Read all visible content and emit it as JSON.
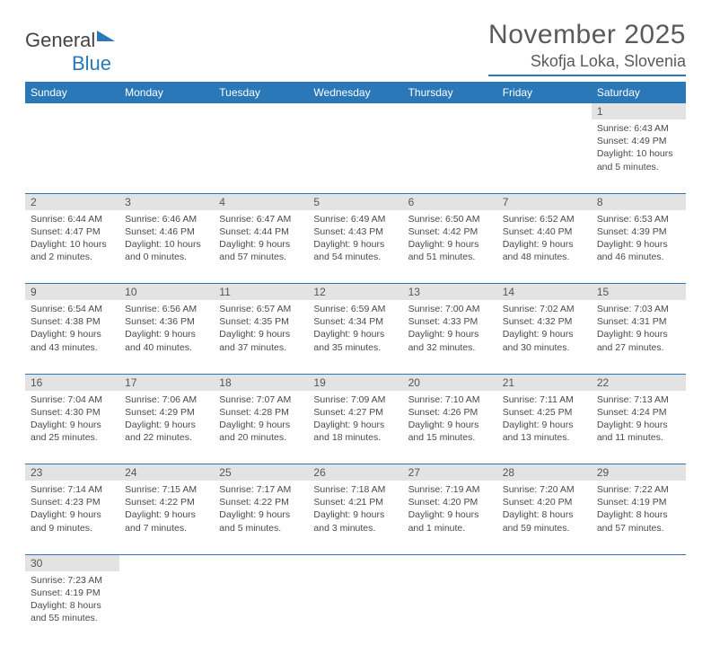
{
  "logo": {
    "text_gray": "General",
    "text_blue": "Blue"
  },
  "title": "November 2025",
  "location": "Skofja Loka, Slovenia",
  "colors": {
    "header_bg": "#2a78b8",
    "header_fg": "#ffffff",
    "daynum_bg": "#e3e3e3",
    "text": "#4a4a4a",
    "row_divider": "#2a78b8"
  },
  "day_headers": [
    "Sunday",
    "Monday",
    "Tuesday",
    "Wednesday",
    "Thursday",
    "Friday",
    "Saturday"
  ],
  "weeks": [
    [
      null,
      null,
      null,
      null,
      null,
      null,
      {
        "n": "1",
        "sr": "6:43 AM",
        "ss": "4:49 PM",
        "dl": "10 hours and 5 minutes."
      }
    ],
    [
      {
        "n": "2",
        "sr": "6:44 AM",
        "ss": "4:47 PM",
        "dl": "10 hours and 2 minutes."
      },
      {
        "n": "3",
        "sr": "6:46 AM",
        "ss": "4:46 PM",
        "dl": "10 hours and 0 minutes."
      },
      {
        "n": "4",
        "sr": "6:47 AM",
        "ss": "4:44 PM",
        "dl": "9 hours and 57 minutes."
      },
      {
        "n": "5",
        "sr": "6:49 AM",
        "ss": "4:43 PM",
        "dl": "9 hours and 54 minutes."
      },
      {
        "n": "6",
        "sr": "6:50 AM",
        "ss": "4:42 PM",
        "dl": "9 hours and 51 minutes."
      },
      {
        "n": "7",
        "sr": "6:52 AM",
        "ss": "4:40 PM",
        "dl": "9 hours and 48 minutes."
      },
      {
        "n": "8",
        "sr": "6:53 AM",
        "ss": "4:39 PM",
        "dl": "9 hours and 46 minutes."
      }
    ],
    [
      {
        "n": "9",
        "sr": "6:54 AM",
        "ss": "4:38 PM",
        "dl": "9 hours and 43 minutes."
      },
      {
        "n": "10",
        "sr": "6:56 AM",
        "ss": "4:36 PM",
        "dl": "9 hours and 40 minutes."
      },
      {
        "n": "11",
        "sr": "6:57 AM",
        "ss": "4:35 PM",
        "dl": "9 hours and 37 minutes."
      },
      {
        "n": "12",
        "sr": "6:59 AM",
        "ss": "4:34 PM",
        "dl": "9 hours and 35 minutes."
      },
      {
        "n": "13",
        "sr": "7:00 AM",
        "ss": "4:33 PM",
        "dl": "9 hours and 32 minutes."
      },
      {
        "n": "14",
        "sr": "7:02 AM",
        "ss": "4:32 PM",
        "dl": "9 hours and 30 minutes."
      },
      {
        "n": "15",
        "sr": "7:03 AM",
        "ss": "4:31 PM",
        "dl": "9 hours and 27 minutes."
      }
    ],
    [
      {
        "n": "16",
        "sr": "7:04 AM",
        "ss": "4:30 PM",
        "dl": "9 hours and 25 minutes."
      },
      {
        "n": "17",
        "sr": "7:06 AM",
        "ss": "4:29 PM",
        "dl": "9 hours and 22 minutes."
      },
      {
        "n": "18",
        "sr": "7:07 AM",
        "ss": "4:28 PM",
        "dl": "9 hours and 20 minutes."
      },
      {
        "n": "19",
        "sr": "7:09 AM",
        "ss": "4:27 PM",
        "dl": "9 hours and 18 minutes."
      },
      {
        "n": "20",
        "sr": "7:10 AM",
        "ss": "4:26 PM",
        "dl": "9 hours and 15 minutes."
      },
      {
        "n": "21",
        "sr": "7:11 AM",
        "ss": "4:25 PM",
        "dl": "9 hours and 13 minutes."
      },
      {
        "n": "22",
        "sr": "7:13 AM",
        "ss": "4:24 PM",
        "dl": "9 hours and 11 minutes."
      }
    ],
    [
      {
        "n": "23",
        "sr": "7:14 AM",
        "ss": "4:23 PM",
        "dl": "9 hours and 9 minutes."
      },
      {
        "n": "24",
        "sr": "7:15 AM",
        "ss": "4:22 PM",
        "dl": "9 hours and 7 minutes."
      },
      {
        "n": "25",
        "sr": "7:17 AM",
        "ss": "4:22 PM",
        "dl": "9 hours and 5 minutes."
      },
      {
        "n": "26",
        "sr": "7:18 AM",
        "ss": "4:21 PM",
        "dl": "9 hours and 3 minutes."
      },
      {
        "n": "27",
        "sr": "7:19 AM",
        "ss": "4:20 PM",
        "dl": "9 hours and 1 minute."
      },
      {
        "n": "28",
        "sr": "7:20 AM",
        "ss": "4:20 PM",
        "dl": "8 hours and 59 minutes."
      },
      {
        "n": "29",
        "sr": "7:22 AM",
        "ss": "4:19 PM",
        "dl": "8 hours and 57 minutes."
      }
    ],
    [
      {
        "n": "30",
        "sr": "7:23 AM",
        "ss": "4:19 PM",
        "dl": "8 hours and 55 minutes."
      },
      null,
      null,
      null,
      null,
      null,
      null
    ]
  ],
  "labels": {
    "sunrise": "Sunrise:",
    "sunset": "Sunset:",
    "daylight": "Daylight:"
  }
}
